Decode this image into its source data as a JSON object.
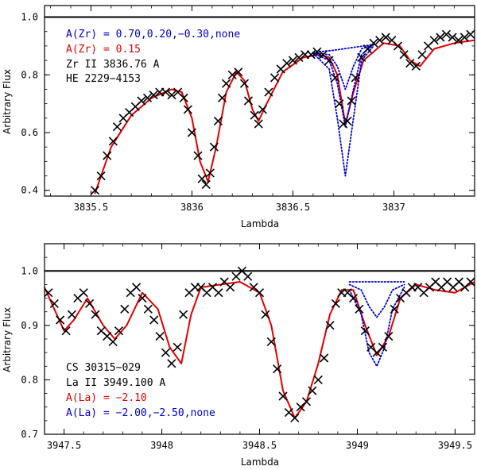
{
  "chart_data": [
    {
      "type": "line",
      "xlabel": "Lambda",
      "ylabel": "Arbitrary Flux",
      "xlim": [
        3835.27,
        3837.4
      ],
      "ylim": [
        0.38,
        1.04
      ],
      "xticks": [
        3835.5,
        3836,
        3836.5,
        3837
      ],
      "xtick_labels": [
        "3835.5",
        "3836",
        "3836.5",
        "3837"
      ],
      "yticks": [
        0.4,
        0.6,
        0.8,
        1.0
      ],
      "ytick_labels": [
        "0.4",
        "0.6",
        "0.8",
        "1.0"
      ],
      "annotations": [
        {
          "text": "A(Zr) = 0.70,0.20,−0.30,none",
          "color": "#0000cc"
        },
        {
          "text": "A(Zr) = 0.15",
          "color": "#e00000"
        },
        {
          "text": "Zr II 3836.76 A",
          "color": "#000000"
        },
        {
          "text": "HE 2229−4153",
          "color": "#000000"
        }
      ],
      "continuum": 1.0,
      "observed": {
        "name": "observed",
        "marker": "x",
        "x": [
          3835.52,
          3835.55,
          3835.58,
          3835.61,
          3835.63,
          3835.66,
          3835.69,
          3835.72,
          3835.75,
          3835.78,
          3835.81,
          3835.84,
          3835.87,
          3835.9,
          3835.93,
          3835.96,
          3835.98,
          3836.0,
          3836.03,
          3836.05,
          3836.07,
          3836.09,
          3836.11,
          3836.13,
          3836.15,
          3836.17,
          3836.2,
          3836.23,
          3836.26,
          3836.28,
          3836.31,
          3836.33,
          3836.35,
          3836.38,
          3836.41,
          3836.44,
          3836.47,
          3836.5,
          3836.53,
          3836.56,
          3836.59,
          3836.62,
          3836.65,
          3836.68,
          3836.71,
          3836.73,
          3836.75,
          3836.77,
          3836.79,
          3836.81,
          3836.84,
          3836.87,
          3836.9,
          3836.93,
          3836.96,
          3836.99,
          3837.02,
          3837.05,
          3837.08,
          3837.11,
          3837.14,
          3837.17,
          3837.2,
          3837.23,
          3837.26,
          3837.29,
          3837.32,
          3837.35,
          3837.38
        ],
        "y": [
          0.4,
          0.45,
          0.52,
          0.57,
          0.62,
          0.65,
          0.67,
          0.69,
          0.71,
          0.72,
          0.73,
          0.74,
          0.74,
          0.73,
          0.74,
          0.72,
          0.68,
          0.6,
          0.52,
          0.44,
          0.42,
          0.46,
          0.55,
          0.64,
          0.72,
          0.77,
          0.8,
          0.81,
          0.77,
          0.71,
          0.66,
          0.63,
          0.68,
          0.74,
          0.79,
          0.82,
          0.84,
          0.85,
          0.86,
          0.87,
          0.87,
          0.88,
          0.87,
          0.85,
          0.79,
          0.7,
          0.63,
          0.64,
          0.71,
          0.79,
          0.86,
          0.89,
          0.91,
          0.92,
          0.93,
          0.92,
          0.9,
          0.87,
          0.84,
          0.83,
          0.87,
          0.9,
          0.92,
          0.93,
          0.94,
          0.93,
          0.92,
          0.93,
          0.94
        ]
      },
      "series": [
        {
          "name": "A(Zr) = 0.15",
          "color": "#e00000",
          "style": "solid",
          "x": [
            3835.52,
            3835.6,
            3835.7,
            3835.8,
            3835.9,
            3835.95,
            3836.0,
            3836.04,
            3836.08,
            3836.12,
            3836.17,
            3836.22,
            3836.26,
            3836.3,
            3836.33,
            3836.37,
            3836.45,
            3836.55,
            3836.63,
            3836.68,
            3836.72,
            3836.76,
            3836.8,
            3836.85,
            3836.95,
            3837.03,
            3837.08,
            3837.13,
            3837.2,
            3837.3,
            3837.4
          ],
          "y": [
            0.39,
            0.55,
            0.66,
            0.72,
            0.75,
            0.74,
            0.65,
            0.5,
            0.43,
            0.55,
            0.74,
            0.81,
            0.78,
            0.68,
            0.64,
            0.7,
            0.81,
            0.86,
            0.87,
            0.86,
            0.8,
            0.63,
            0.74,
            0.85,
            0.91,
            0.9,
            0.85,
            0.83,
            0.89,
            0.91,
            0.92
          ]
        },
        {
          "name": "A(Zr) = 0.70",
          "color": "#0000dd",
          "style": "dotted",
          "x": [
            3836.6,
            3836.68,
            3836.72,
            3836.76,
            3836.8,
            3836.84,
            3836.9
          ],
          "y": [
            0.875,
            0.82,
            0.65,
            0.45,
            0.65,
            0.85,
            0.9
          ]
        },
        {
          "name": "A(Zr) = 0.20",
          "color": "#0000dd",
          "style": "dotted",
          "x": [
            3836.6,
            3836.68,
            3836.72,
            3836.76,
            3836.8,
            3836.84,
            3836.9
          ],
          "y": [
            0.875,
            0.85,
            0.77,
            0.62,
            0.75,
            0.87,
            0.905
          ]
        },
        {
          "name": "A(Zr) = −0.30",
          "color": "#0000dd",
          "style": "dotted",
          "x": [
            3836.6,
            3836.68,
            3836.72,
            3836.76,
            3836.8,
            3836.84,
            3836.9
          ],
          "y": [
            0.875,
            0.87,
            0.83,
            0.75,
            0.83,
            0.89,
            0.905
          ]
        },
        {
          "name": "none",
          "color": "#0000dd",
          "style": "dotted",
          "x": [
            3836.6,
            3836.7,
            3836.8,
            3836.9
          ],
          "y": [
            0.878,
            0.885,
            0.895,
            0.905
          ]
        }
      ]
    },
    {
      "type": "line",
      "xlabel": "Lambda",
      "ylabel": "Arbitrary Flux",
      "xlim": [
        3947.4,
        3949.6
      ],
      "ylim": [
        0.7,
        1.05
      ],
      "xticks": [
        3947.5,
        3948,
        3948.5,
        3949,
        3949.5
      ],
      "xtick_labels": [
        "3947.5",
        "3948",
        "3948.5",
        "3949",
        "3949.5"
      ],
      "yticks": [
        0.7,
        0.8,
        0.9,
        1.0
      ],
      "ytick_labels": [
        "0.7",
        "0.8",
        "0.9",
        "1.0"
      ],
      "annotations": [
        {
          "text": "CS 30315−029",
          "color": "#000000"
        },
        {
          "text": "La II 3949.100 A",
          "color": "#000000"
        },
        {
          "text": "A(La) = −2.10",
          "color": "#e00000"
        },
        {
          "text": "A(La) = −2.00,−2.50,none",
          "color": "#0000cc"
        }
      ],
      "continuum": 1.0,
      "observed": {
        "name": "observed",
        "marker": "x",
        "x": [
          3947.42,
          3947.45,
          3947.48,
          3947.51,
          3947.54,
          3947.57,
          3947.6,
          3947.63,
          3947.66,
          3947.69,
          3947.72,
          3947.75,
          3947.78,
          3947.81,
          3947.84,
          3947.87,
          3947.9,
          3947.93,
          3947.96,
          3947.99,
          3948.02,
          3948.05,
          3948.08,
          3948.11,
          3948.14,
          3948.17,
          3948.2,
          3948.23,
          3948.26,
          3948.29,
          3948.32,
          3948.35,
          3948.38,
          3948.41,
          3948.44,
          3948.47,
          3948.5,
          3948.53,
          3948.56,
          3948.59,
          3948.62,
          3948.65,
          3948.68,
          3948.71,
          3948.74,
          3948.77,
          3948.8,
          3948.83,
          3948.86,
          3948.89,
          3948.92,
          3948.95,
          3948.98,
          3949.01,
          3949.04,
          3949.07,
          3949.1,
          3949.13,
          3949.16,
          3949.19,
          3949.22,
          3949.25,
          3949.28,
          3949.31,
          3949.34,
          3949.37,
          3949.4,
          3949.43,
          3949.46,
          3949.49,
          3949.52,
          3949.55,
          3949.58
        ],
        "y": [
          0.96,
          0.94,
          0.91,
          0.89,
          0.92,
          0.95,
          0.96,
          0.94,
          0.92,
          0.89,
          0.88,
          0.87,
          0.89,
          0.93,
          0.96,
          0.97,
          0.95,
          0.93,
          0.91,
          0.88,
          0.85,
          0.83,
          0.86,
          0.92,
          0.96,
          0.97,
          0.97,
          0.96,
          0.97,
          0.96,
          0.98,
          0.97,
          0.99,
          1.0,
          0.99,
          0.97,
          0.96,
          0.92,
          0.87,
          0.82,
          0.77,
          0.74,
          0.73,
          0.75,
          0.76,
          0.78,
          0.8,
          0.84,
          0.9,
          0.94,
          0.96,
          0.96,
          0.95,
          0.93,
          0.89,
          0.86,
          0.85,
          0.86,
          0.88,
          0.93,
          0.95,
          0.96,
          0.97,
          0.97,
          0.96,
          0.97,
          0.98,
          0.97,
          0.98,
          0.97,
          0.98,
          0.97,
          0.98
        ]
      },
      "series": [
        {
          "name": "A(La) = −2.10",
          "color": "#e00000",
          "style": "solid",
          "x": [
            3947.4,
            3947.45,
            3947.5,
            3947.55,
            3947.62,
            3947.7,
            3947.76,
            3947.82,
            3947.9,
            3947.98,
            3948.04,
            3948.1,
            3948.15,
            3948.2,
            3948.3,
            3948.4,
            3948.5,
            3948.56,
            3948.62,
            3948.68,
            3948.74,
            3948.8,
            3948.86,
            3948.92,
            3948.98,
            3949.04,
            3949.1,
            3949.16,
            3949.22,
            3949.3,
            3949.4,
            3949.5,
            3949.6
          ],
          "y": [
            0.97,
            0.93,
            0.89,
            0.91,
            0.95,
            0.9,
            0.875,
            0.9,
            0.96,
            0.93,
            0.86,
            0.83,
            0.92,
            0.97,
            0.975,
            0.98,
            0.96,
            0.9,
            0.78,
            0.73,
            0.76,
            0.83,
            0.92,
            0.965,
            0.965,
            0.9,
            0.845,
            0.88,
            0.95,
            0.975,
            0.965,
            0.96,
            0.98
          ]
        },
        {
          "name": "A(La) = −2.00",
          "color": "#0000dd",
          "style": "dotted",
          "x": [
            3948.96,
            3949.02,
            3949.06,
            3949.1,
            3949.14,
            3949.18,
            3949.24
          ],
          "y": [
            0.965,
            0.92,
            0.85,
            0.825,
            0.86,
            0.93,
            0.97
          ]
        },
        {
          "name": "A(La) = −2.50",
          "color": "#0000dd",
          "style": "dotted",
          "x": [
            3948.96,
            3949.02,
            3949.06,
            3949.1,
            3949.14,
            3949.18,
            3949.24
          ],
          "y": [
            0.975,
            0.965,
            0.935,
            0.915,
            0.935,
            0.965,
            0.975
          ]
        },
        {
          "name": "none",
          "color": "#0000dd",
          "style": "dotted",
          "x": [
            3948.96,
            3949.1,
            3949.24
          ],
          "y": [
            0.98,
            0.98,
            0.98
          ]
        }
      ]
    }
  ]
}
